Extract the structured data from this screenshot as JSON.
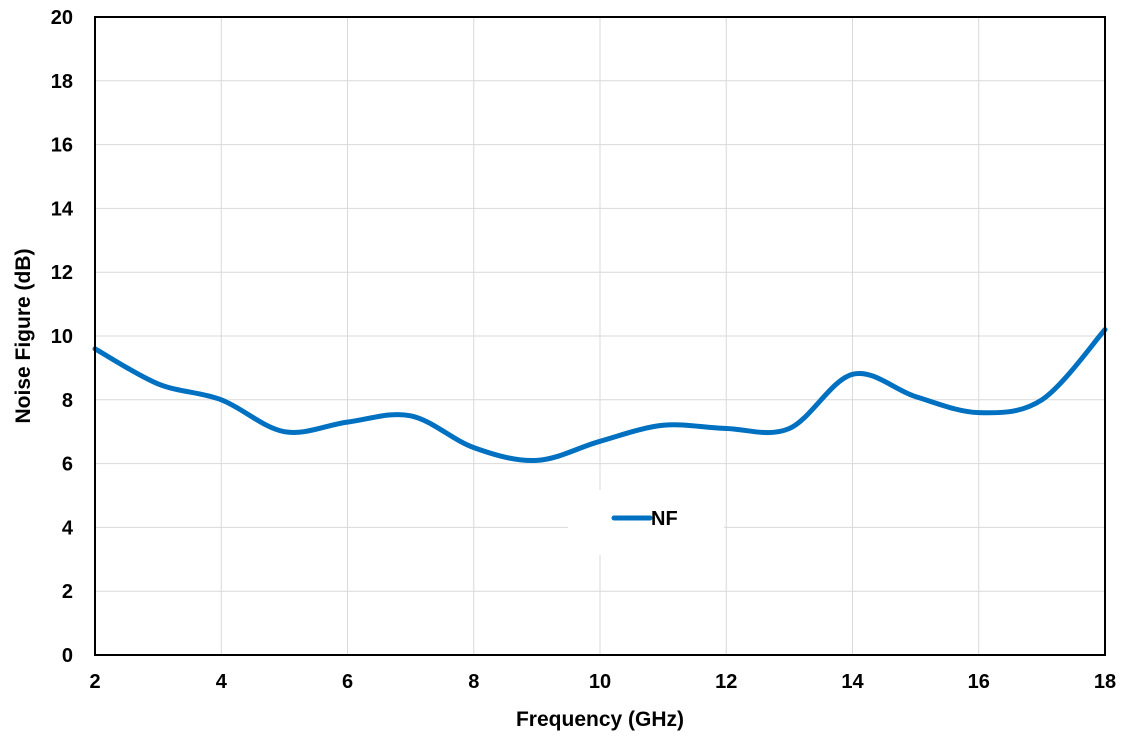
{
  "chart_data": {
    "type": "line",
    "xlabel": "Frequency (GHz)",
    "ylabel": "Noise Figure (dB)",
    "xlim": [
      2,
      18
    ],
    "ylim": [
      0,
      20
    ],
    "x_ticks": [
      2,
      4,
      6,
      8,
      10,
      12,
      14,
      16,
      18
    ],
    "y_ticks": [
      0,
      2,
      4,
      6,
      8,
      10,
      12,
      14,
      16,
      18,
      20
    ],
    "grid": true,
    "legend_position": "center",
    "series": [
      {
        "name": "NF",
        "color": "#0070c0",
        "x": [
          2,
          3,
          4,
          5,
          6,
          7,
          8,
          9,
          10,
          11,
          12,
          13,
          14,
          15,
          16,
          17,
          18
        ],
        "y": [
          9.6,
          8.5,
          8.0,
          7.0,
          7.3,
          7.5,
          6.5,
          6.1,
          6.7,
          7.2,
          7.1,
          7.1,
          8.8,
          8.1,
          7.6,
          8.0,
          10.2
        ]
      }
    ]
  }
}
